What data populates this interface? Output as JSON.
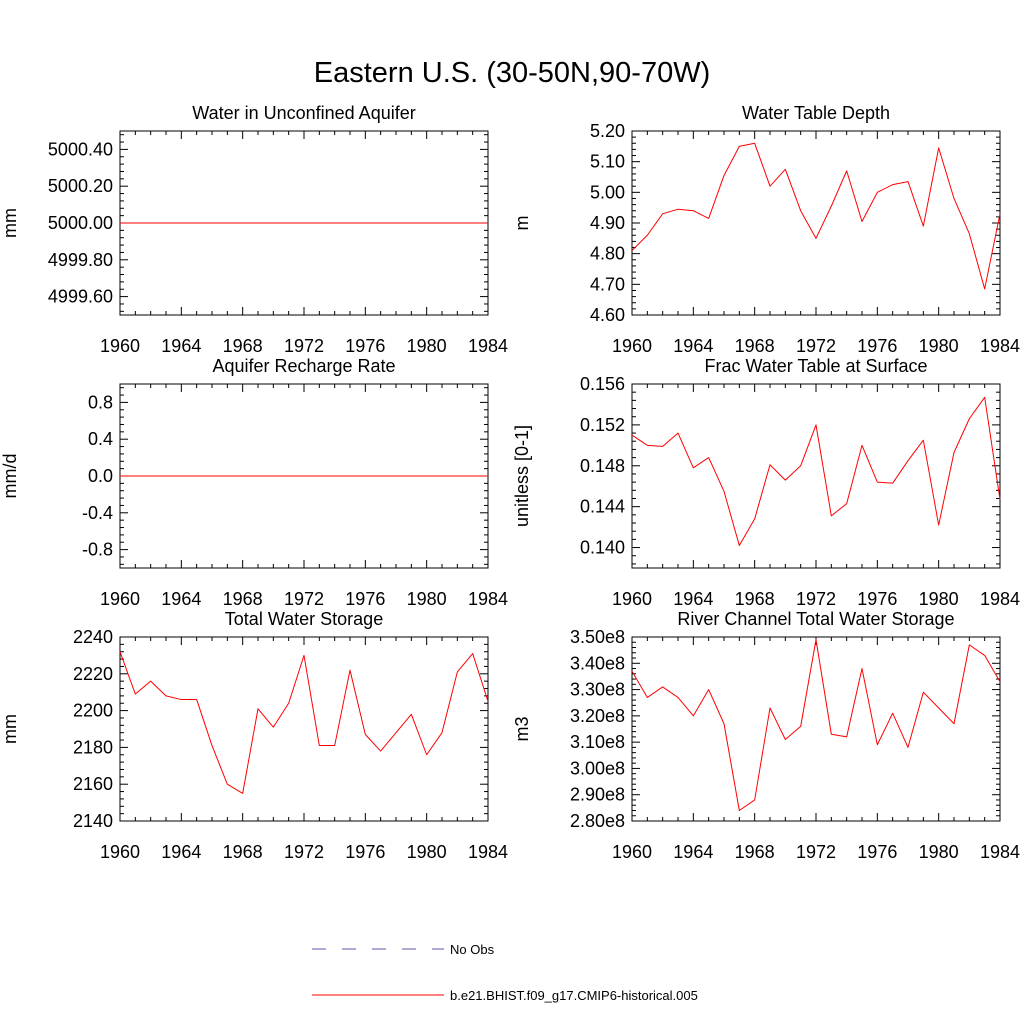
{
  "figure": {
    "title": "Eastern U.S. (30-50N,90-70W)"
  },
  "legend": {
    "placement": "bottom-center",
    "entries": [
      {
        "label": "No Obs",
        "color": "#5555aa",
        "style": "dashed"
      },
      {
        "label": "b.e21.BHIST.f09_g17.CMIP6-historical.005",
        "color": "#ff0000",
        "style": "solid"
      }
    ]
  },
  "chart_data": [
    {
      "type": "line",
      "title": "Water in Unconfined Aquifer",
      "ylabel": "mm",
      "xlim": [
        1960,
        1984
      ],
      "ylim": [
        4999.5,
        5000.5
      ],
      "xticks": [
        1960,
        1964,
        1968,
        1972,
        1976,
        1980,
        1984
      ],
      "yticks": [
        4999.6,
        4999.8,
        5000.0,
        5000.2,
        5000.4
      ],
      "ytick_labels": [
        "4999.60",
        "4999.80",
        "5000.00",
        "5000.20",
        "5000.40"
      ],
      "series": [
        {
          "name": "b.e21.BHIST.f09_g17.CMIP6-historical.005",
          "color": "#ff0000",
          "x": [
            1960,
            1984
          ],
          "values": [
            5000.0,
            5000.0
          ]
        }
      ]
    },
    {
      "type": "line",
      "title": "Water Table Depth",
      "ylabel": "m",
      "xlim": [
        1960,
        1984
      ],
      "ylim": [
        4.6,
        5.2
      ],
      "xticks": [
        1960,
        1964,
        1968,
        1972,
        1976,
        1980,
        1984
      ],
      "yticks": [
        4.6,
        4.7,
        4.8,
        4.9,
        5.0,
        5.1,
        5.2
      ],
      "ytick_labels": [
        "4.60",
        "4.70",
        "4.80",
        "4.90",
        "5.00",
        "5.10",
        "5.20"
      ],
      "series": [
        {
          "name": "b.e21.BHIST.f09_g17.CMIP6-historical.005",
          "color": "#ff0000",
          "x": [
            1960,
            1961,
            1962,
            1963,
            1964,
            1965,
            1966,
            1967,
            1968,
            1969,
            1970,
            1971,
            1972,
            1973,
            1974,
            1975,
            1976,
            1977,
            1978,
            1979,
            1980,
            1981,
            1982,
            1983,
            1984
          ],
          "values": [
            4.81,
            4.86,
            4.93,
            4.945,
            4.94,
            4.915,
            5.055,
            5.15,
            5.16,
            5.02,
            5.075,
            4.94,
            4.85,
            4.955,
            5.07,
            4.905,
            5.0,
            5.025,
            5.035,
            4.89,
            5.145,
            4.98,
            4.865,
            4.685,
            4.93
          ]
        }
      ]
    },
    {
      "type": "line",
      "title": "Aquifer Recharge Rate",
      "ylabel": "mm/d",
      "xlim": [
        1960,
        1984
      ],
      "ylim": [
        -1.0,
        1.0
      ],
      "xticks": [
        1960,
        1964,
        1968,
        1972,
        1976,
        1980,
        1984
      ],
      "yticks": [
        -0.8,
        -0.4,
        0.0,
        0.4,
        0.8
      ],
      "ytick_labels": [
        "-0.8",
        "-0.4",
        "0.0",
        "0.4",
        "0.8"
      ],
      "series": [
        {
          "name": "b.e21.BHIST.f09_g17.CMIP6-historical.005",
          "color": "#ff0000",
          "x": [
            1960,
            1984
          ],
          "values": [
            0.0,
            0.0
          ]
        }
      ]
    },
    {
      "type": "line",
      "title": "Frac Water Table at Surface",
      "ylabel": "unitless [0-1]",
      "xlim": [
        1960,
        1984
      ],
      "ylim": [
        0.138,
        0.156
      ],
      "xticks": [
        1960,
        1964,
        1968,
        1972,
        1976,
        1980,
        1984
      ],
      "yticks": [
        0.14,
        0.144,
        0.148,
        0.152,
        0.156
      ],
      "ytick_labels": [
        "0.140",
        "0.144",
        "0.148",
        "0.152",
        "0.156"
      ],
      "series": [
        {
          "name": "b.e21.BHIST.f09_g17.CMIP6-historical.005",
          "color": "#ff0000",
          "x": [
            1960,
            1961,
            1962,
            1963,
            1964,
            1965,
            1966,
            1967,
            1968,
            1969,
            1970,
            1971,
            1972,
            1973,
            1974,
            1975,
            1976,
            1977,
            1978,
            1979,
            1980,
            1981,
            1982,
            1983,
            1984
          ],
          "values": [
            0.151,
            0.15,
            0.1499,
            0.1512,
            0.1478,
            0.1488,
            0.1455,
            0.1402,
            0.1428,
            0.1481,
            0.1466,
            0.148,
            0.152,
            0.1431,
            0.1443,
            0.15,
            0.1464,
            0.1463,
            0.1485,
            0.1505,
            0.1422,
            0.1493,
            0.1526,
            0.1547,
            0.1447
          ]
        }
      ]
    },
    {
      "type": "line",
      "title": "Total Water Storage",
      "ylabel": "mm",
      "xlim": [
        1960,
        1984
      ],
      "ylim": [
        2140,
        2240
      ],
      "xticks": [
        1960,
        1964,
        1968,
        1972,
        1976,
        1980,
        1984
      ],
      "yticks": [
        2140,
        2160,
        2180,
        2200,
        2220,
        2240
      ],
      "ytick_labels": [
        "2140",
        "2160",
        "2180",
        "2200",
        "2220",
        "2240"
      ],
      "series": [
        {
          "name": "b.e21.BHIST.f09_g17.CMIP6-historical.005",
          "color": "#ff0000",
          "x": [
            1960,
            1961,
            1962,
            1963,
            1964,
            1965,
            1966,
            1967,
            1968,
            1969,
            1970,
            1971,
            1972,
            1973,
            1974,
            1975,
            1976,
            1977,
            1978,
            1979,
            1980,
            1981,
            1982,
            1983,
            1984
          ],
          "values": [
            2232,
            2209,
            2216,
            2208,
            2206,
            2206,
            2181,
            2160,
            2155,
            2201,
            2191,
            2204,
            2230,
            2181,
            2181,
            2222,
            2187,
            2178,
            2188,
            2198,
            2176,
            2188,
            2221,
            2231,
            2205
          ]
        }
      ]
    },
    {
      "type": "line",
      "title": "River Channel Total Water Storage",
      "ylabel": "m3",
      "xlim": [
        1960,
        1984
      ],
      "ylim": [
        280000000,
        350000000
      ],
      "xticks": [
        1960,
        1964,
        1968,
        1972,
        1976,
        1980,
        1984
      ],
      "yticks": [
        280000000,
        290000000,
        300000000,
        310000000,
        320000000,
        330000000,
        340000000,
        350000000
      ],
      "ytick_labels": [
        "2.80e8",
        "2.90e8",
        "3.00e8",
        "3.10e8",
        "3.20e8",
        "3.30e8",
        "3.40e8",
        "3.50e8"
      ],
      "series": [
        {
          "name": "b.e21.BHIST.f09_g17.CMIP6-historical.005",
          "color": "#ff0000",
          "x": [
            1960,
            1961,
            1962,
            1963,
            1964,
            1965,
            1966,
            1967,
            1968,
            1969,
            1970,
            1971,
            1972,
            1973,
            1974,
            1975,
            1976,
            1977,
            1978,
            1979,
            1980,
            1981,
            1982,
            1983,
            1984
          ],
          "values": [
            337000000,
            327000000,
            331000000,
            327000000,
            320000000,
            330000000,
            317000000,
            284000000,
            288000000,
            323000000,
            311000000,
            316000000,
            349000000,
            313000000,
            312000000,
            338000000,
            309000000,
            321000000,
            308000000,
            329000000,
            323000000,
            317000000,
            347000000,
            343000000,
            333000000
          ]
        }
      ]
    }
  ]
}
